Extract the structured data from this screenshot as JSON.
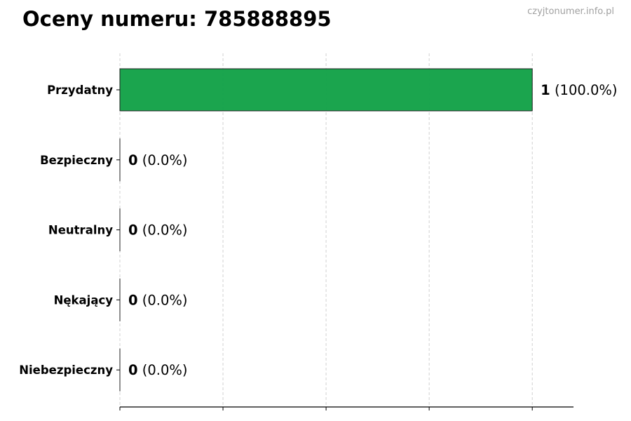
{
  "title": "Oceny numeru: 785888895",
  "watermark": "czyjtonumer.info.pl",
  "colors": {
    "bar": "#16a34a",
    "grid": "#d0d0d0"
  },
  "chart_data": {
    "type": "bar",
    "orientation": "horizontal",
    "categories": [
      "Przydatny",
      "Bezpieczny",
      "Neutralny",
      "Nękający",
      "Niebezpieczny"
    ],
    "values": [
      1,
      0,
      0,
      0,
      0
    ],
    "labels": [
      {
        "count": "1",
        "pct": "(100.0%)"
      },
      {
        "count": "0",
        "pct": "(0.0%)"
      },
      {
        "count": "0",
        "pct": "(0.0%)"
      },
      {
        "count": "0",
        "pct": "(0.0%)"
      },
      {
        "count": "0",
        "pct": "(0.0%)"
      }
    ],
    "xlim": [
      0,
      1.1
    ],
    "xticks": [
      0,
      0.25,
      0.5,
      0.75,
      1
    ],
    "xtick_labels_shown": false,
    "grid": "x, dashed",
    "legend": "none"
  }
}
